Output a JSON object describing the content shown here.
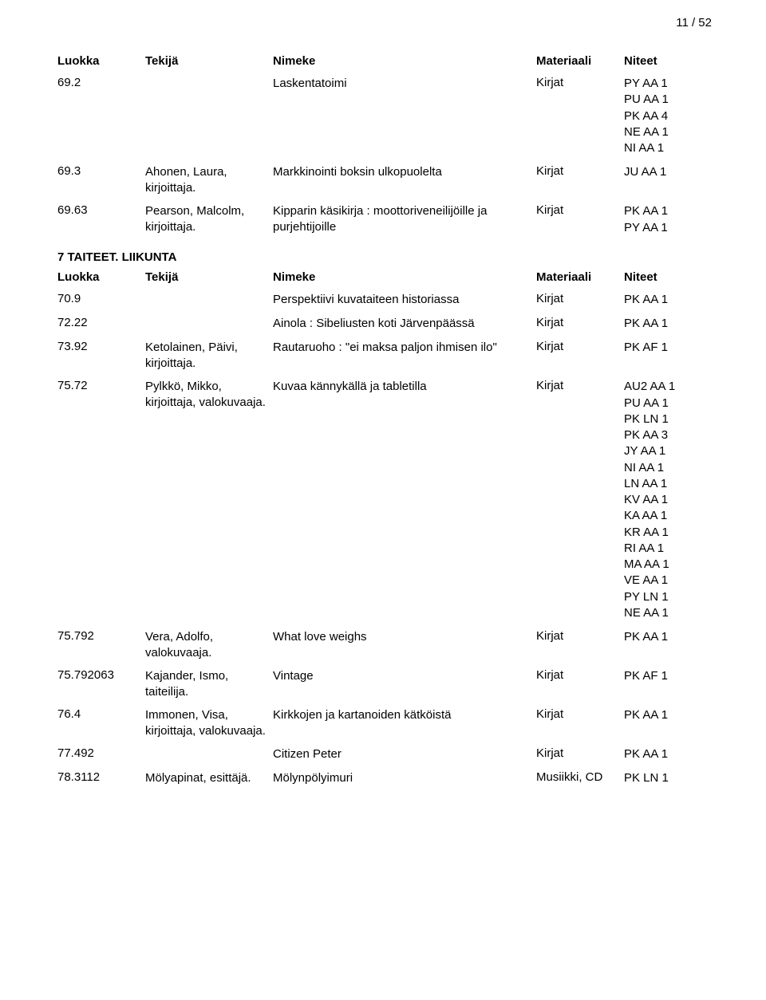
{
  "page_number": "11 / 52",
  "columns": {
    "luokka": "Luokka",
    "tekija": "Tekijä",
    "nimeke": "Nimeke",
    "materiaali": "Materiaali",
    "niteet": "Niteet"
  },
  "section1_rows": [
    {
      "luokka": "69.2",
      "tekija": "",
      "nimeke": "Laskentatoimi",
      "materiaali": "Kirjat",
      "niteet": [
        "PY AA 1",
        "PU AA 1",
        "PK AA 4",
        "NE AA 1",
        "NI AA 1"
      ]
    },
    {
      "luokka": "69.3",
      "tekija": "Ahonen, Laura, kirjoittaja.",
      "nimeke": "Markkinointi boksin ulkopuolelta",
      "materiaali": "Kirjat",
      "niteet": [
        "JU AA 1"
      ]
    },
    {
      "luokka": "69.63",
      "tekija": "Pearson, Malcolm, kirjoittaja.",
      "nimeke": "Kipparin käsikirja : moottoriveneilijöille ja purjehtijoille",
      "materiaali": "Kirjat",
      "niteet": [
        "PK AA 1",
        "PY AA 1"
      ]
    }
  ],
  "section2_title": "7 TAITEET. LIIKUNTA",
  "section2_rows": [
    {
      "luokka": "70.9",
      "tekija": "",
      "nimeke": "Perspektiivi kuvataiteen historiassa",
      "materiaali": "Kirjat",
      "niteet": [
        "PK AA 1"
      ]
    },
    {
      "luokka": "72.22",
      "tekija": "",
      "nimeke": "Ainola : Sibeliusten koti Järvenpäässä",
      "materiaali": "Kirjat",
      "niteet": [
        "PK AA 1"
      ]
    },
    {
      "luokka": "73.92",
      "tekija": "Ketolainen, Päivi, kirjoittaja.",
      "nimeke": "Rautaruoho : \"ei maksa paljon ihmisen ilo\"",
      "materiaali": "Kirjat",
      "niteet": [
        "PK AF 1"
      ]
    },
    {
      "luokka": "75.72",
      "tekija": "Pylkkö, Mikko, kirjoittaja, valokuvaaja.",
      "nimeke": "Kuvaa kännykällä ja tabletilla",
      "materiaali": "Kirjat",
      "niteet": [
        "AU2 AA 1",
        "PU AA 1",
        "PK LN 1",
        "PK AA 3",
        "JY AA 1",
        "NI AA 1",
        "LN AA 1",
        "KV AA 1",
        "KA AA 1",
        "KR AA 1",
        "RI AA 1",
        "MA AA 1",
        "VE AA 1",
        "PY LN 1",
        "NE AA 1"
      ]
    },
    {
      "luokka": "75.792",
      "tekija": "Vera, Adolfo, valokuvaaja.",
      "nimeke": "What love weighs",
      "materiaali": "Kirjat",
      "niteet": [
        "PK AA 1"
      ]
    },
    {
      "luokka": "75.792063",
      "tekija": "Kajander, Ismo, taiteilija.",
      "nimeke": "Vintage",
      "materiaali": "Kirjat",
      "niteet": [
        "PK AF 1"
      ]
    },
    {
      "luokka": "76.4",
      "tekija": "Immonen, Visa, kirjoittaja, valokuvaaja.",
      "nimeke": "Kirkkojen ja kartanoiden kätköistä",
      "materiaali": "Kirjat",
      "niteet": [
        "PK AA 1"
      ]
    },
    {
      "luokka": "77.492",
      "tekija": "",
      "nimeke": "Citizen Peter",
      "materiaali": "Kirjat",
      "niteet": [
        "PK AA 1"
      ]
    },
    {
      "luokka": "78.3112",
      "tekija": "Mölyapinat, esittäjä.",
      "nimeke": "Mölynpölyimuri",
      "materiaali": "Musiikki, CD",
      "niteet": [
        "PK LN 1"
      ]
    }
  ],
  "style": {
    "font_family": "Arial, Helvetica, sans-serif",
    "font_size_pt": 11,
    "text_color": "#000000",
    "background_color": "#ffffff"
  }
}
